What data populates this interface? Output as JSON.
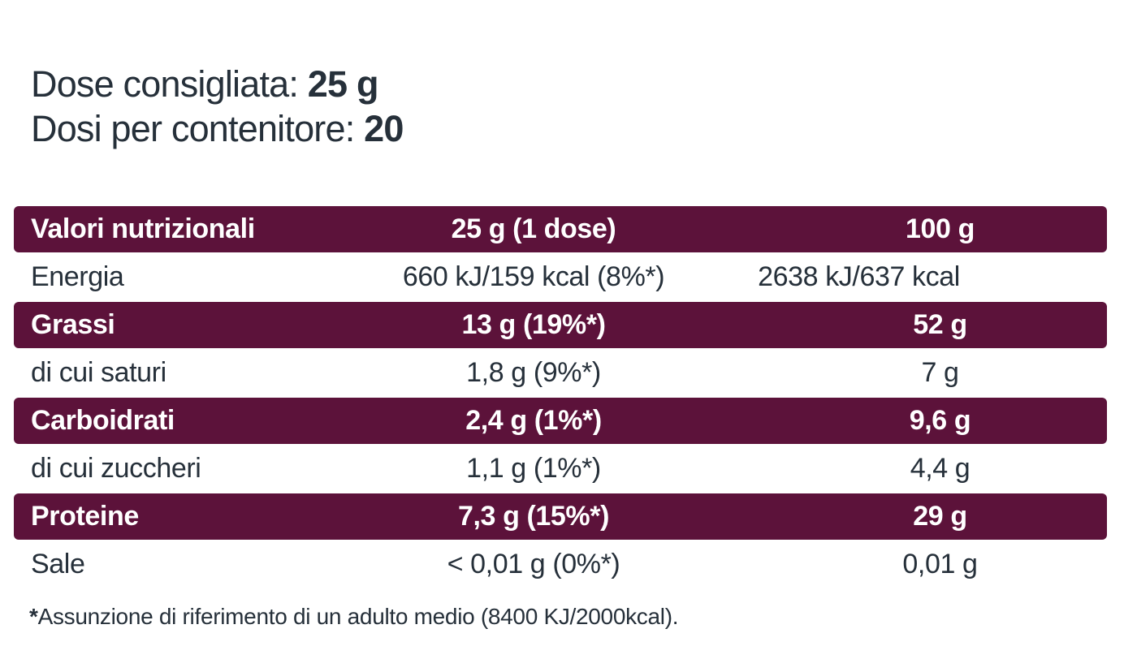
{
  "meta": {
    "background_color": "#ffffff",
    "accent_color": "#5c123a",
    "text_color": "#26303a"
  },
  "header": {
    "line1_label": "Dose consigliata: ",
    "line1_value": "25 g",
    "line2_label": "Dosi per contenitore: ",
    "line2_value": "20"
  },
  "table": {
    "columns": [
      "Valori nutrizionali",
      "25 g (1 dose)",
      "100 g"
    ],
    "rows": [
      {
        "label": "Energia",
        "per_dose": "660 kJ/159 kcal (8%*)",
        "per_100g": "2638 kJ/637 kcal",
        "emphasis": false
      },
      {
        "label": "Grassi",
        "per_dose": "13 g (19%*)",
        "per_100g": "52 g",
        "emphasis": true
      },
      {
        "label": "di cui saturi",
        "per_dose": "1,8 g (9%*)",
        "per_100g": "7 g",
        "emphasis": false
      },
      {
        "label": "Carboidrati",
        "per_dose": "2,4 g (1%*)",
        "per_100g": "9,6 g",
        "emphasis": true
      },
      {
        "label": "di cui zuccheri",
        "per_dose": "1,1 g (1%*)",
        "per_100g": "4,4 g",
        "emphasis": false
      },
      {
        "label": "Proteine",
        "per_dose": "7,3 g (15%*)",
        "per_100g": "29 g",
        "emphasis": true
      },
      {
        "label": "Sale",
        "per_dose": "< 0,01 g (0%*)",
        "per_100g": "0,01 g",
        "emphasis": false
      }
    ]
  },
  "footnote": {
    "marker": "*",
    "text": "Assunzione di riferimento di un adulto medio (8400 KJ/2000kcal)."
  }
}
